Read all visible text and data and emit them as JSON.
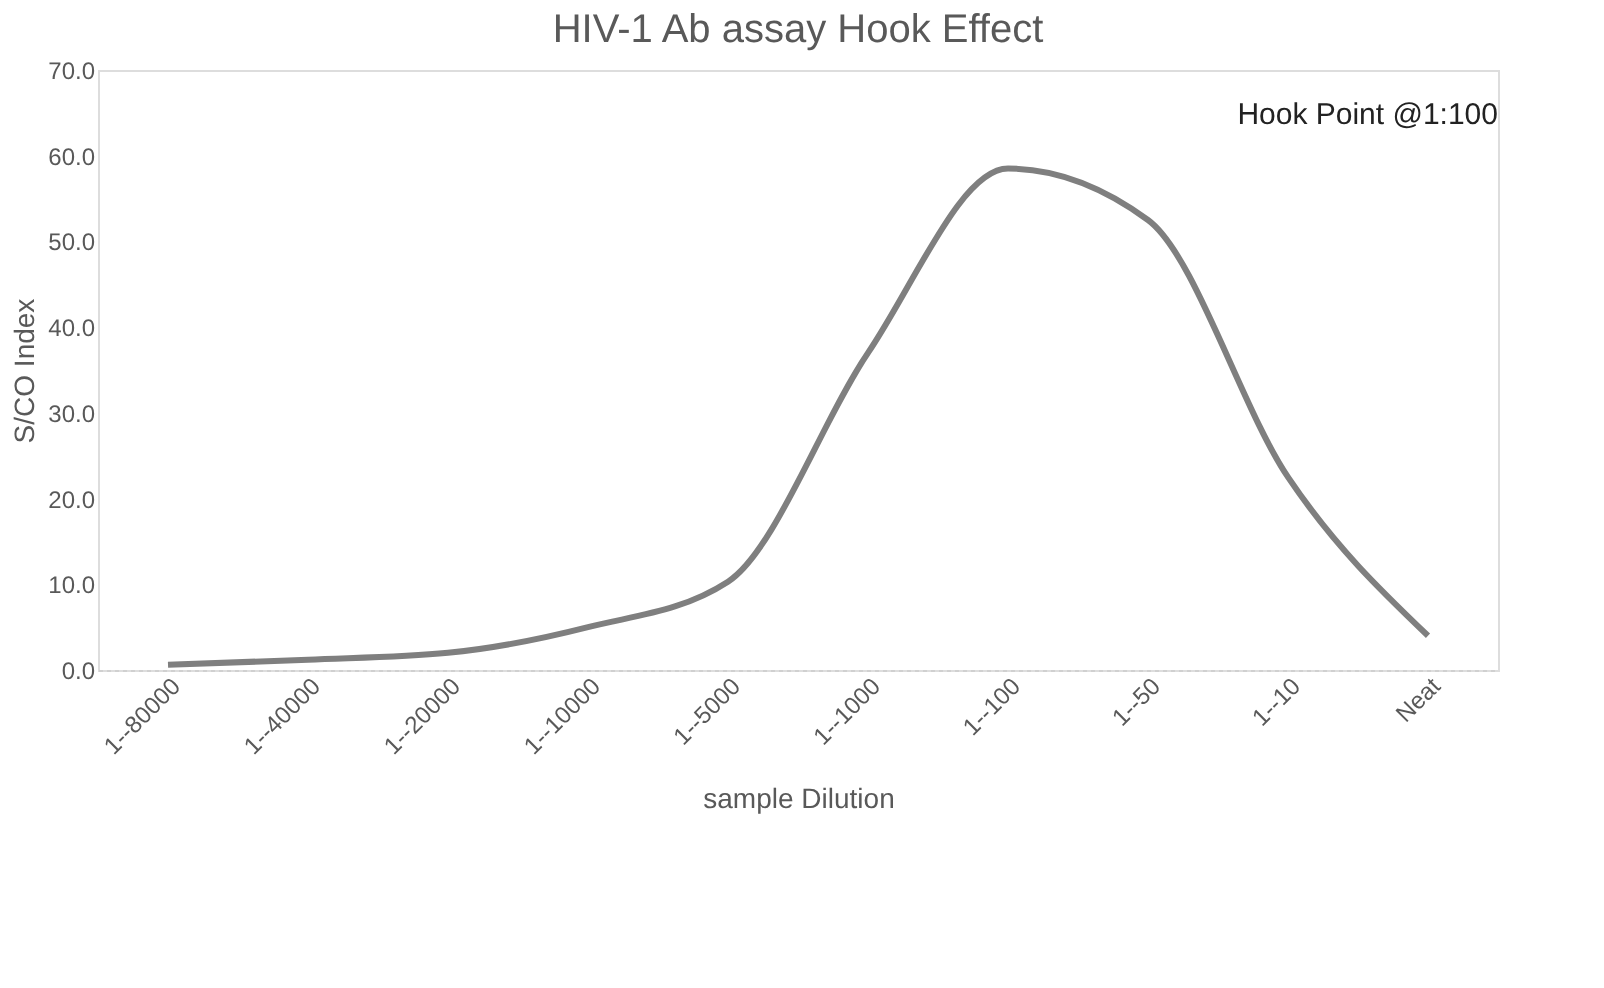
{
  "chart_data": {
    "type": "line",
    "title": "HIV-1 Ab assay Hook Effect",
    "xlabel": "sample Dilution",
    "ylabel": "S/CO Index",
    "categories": [
      "1--80000",
      "1--40000",
      "1--20000",
      "1--10000",
      "1--5000",
      "1--1000",
      "1--100",
      "1--50",
      "1--10",
      "Neat"
    ],
    "series": [
      {
        "color": "#7f7f7f",
        "values": [
          0.6,
          1.2,
          2.0,
          5.0,
          10.3,
          37.0,
          58.5,
          52.5,
          22.5,
          4.0
        ]
      }
    ],
    "ylim": [
      0,
      70
    ],
    "yticks": [
      {
        "value": 0,
        "label": "0.0"
      },
      {
        "value": 10,
        "label": "10.0"
      },
      {
        "value": 20,
        "label": "20.0"
      },
      {
        "value": 30,
        "label": "30.0"
      },
      {
        "value": 40,
        "label": "40.0"
      },
      {
        "value": 50,
        "label": "50.0"
      },
      {
        "value": 60,
        "label": "60.0"
      },
      {
        "value": 70,
        "label": "70.0"
      }
    ],
    "grid": false,
    "marker": "none",
    "line_style": "solid",
    "annotations": [
      "Hook Point @1:100"
    ]
  }
}
